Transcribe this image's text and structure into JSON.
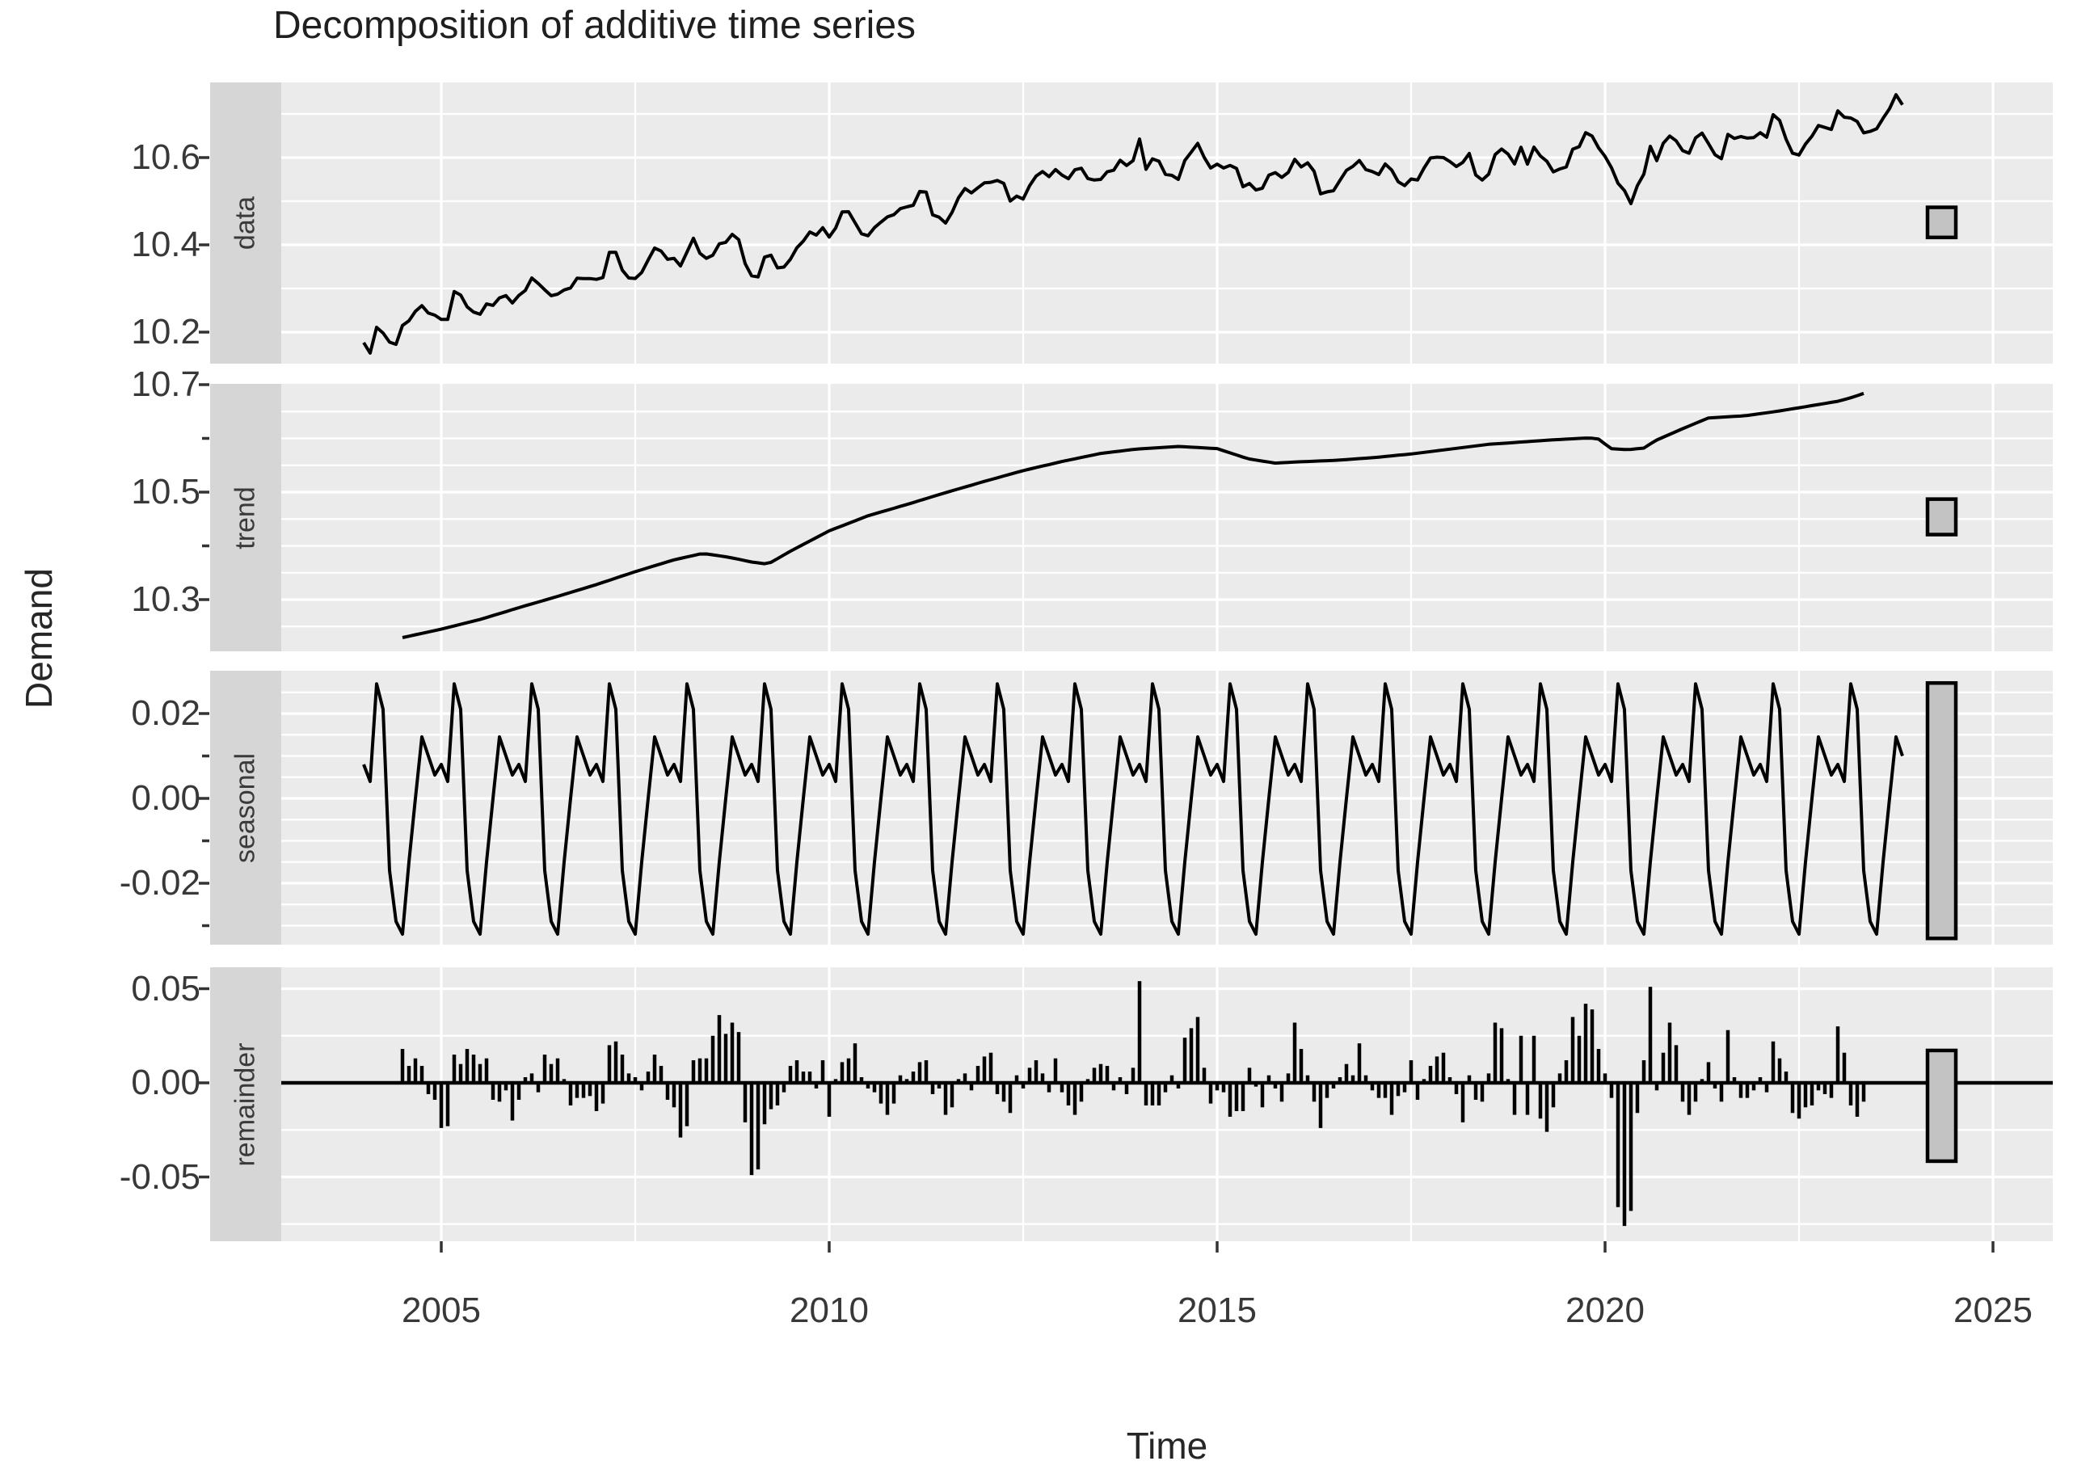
{
  "title": "Decomposition of additive time series",
  "axes": {
    "y_label": "Demand",
    "x_label": "Time",
    "x_ticks": [
      {
        "value": 2005,
        "label": "2005"
      },
      {
        "value": 2010,
        "label": "2010"
      },
      {
        "value": 2015,
        "label": "2015"
      },
      {
        "value": 2020,
        "label": "2020"
      },
      {
        "value": 2025,
        "label": "2025"
      }
    ],
    "x_minor_gridlines": [
      2007.5,
      2012.5,
      2017.5,
      2022.5
    ]
  },
  "style": {
    "panel_bg": "#ebebeb",
    "strip_bg": "#d6d6d6",
    "gridline": "#ffffff",
    "series": "#000000",
    "scale_bar_fill": "#c3c3c3",
    "scale_bar_border": "#000000",
    "axis_text": "#383838",
    "tick_mark": "#333333"
  },
  "chart_data": {
    "type": "line",
    "subtype": "additive-time-series-decomposition, 4 stacked facet panels",
    "x_frequency": "monthly",
    "x_start": "2004-01",
    "x_end": "2023-11",
    "trend_remainder_start": "2004-07",
    "trend_remainder_end": "2023-05",
    "xlim": [
      2002.94,
      2025.77
    ],
    "panels": [
      {
        "key": "data",
        "label": "data",
        "ylim": [
          10.128,
          10.772
        ],
        "tick_labels": [
          {
            "value": 10.6,
            "label": "10.6"
          },
          {
            "value": 10.4,
            "label": "10.4"
          },
          {
            "value": 10.2,
            "label": "10.2"
          }
        ],
        "minor_ticks": [],
        "minor_gridlines": [
          10.1,
          10.3,
          10.5,
          10.7
        ],
        "scale_bar": [
          10.417,
          10.486
        ]
      },
      {
        "key": "trend",
        "label": "trend",
        "ylim": [
          10.204,
          10.702
        ],
        "tick_labels": [
          {
            "value": 10.7,
            "label": "10.7"
          },
          {
            "value": 10.5,
            "label": "10.5"
          },
          {
            "value": 10.3,
            "label": "10.3"
          }
        ],
        "minor_ticks": [
          10.6,
          10.4
        ],
        "minor_gridlines": [
          10.65,
          10.6,
          10.55,
          10.45,
          10.4,
          10.35,
          10.25
        ],
        "scale_bar": [
          10.421,
          10.487
        ]
      },
      {
        "key": "seasonal",
        "label": "seasonal",
        "ylim": [
          -0.0345,
          0.0301
        ],
        "tick_labels": [
          {
            "value": 0.02,
            "label": "0.02"
          },
          {
            "value": 0.0,
            "label": "0.00"
          },
          {
            "value": -0.02,
            "label": "-0.02"
          }
        ],
        "minor_ticks": [
          0.01,
          -0.01,
          -0.03
        ],
        "minor_gridlines": [
          0.025,
          0.015,
          0.01,
          0.005,
          -0.005,
          -0.01,
          -0.015,
          -0.025,
          -0.03
        ],
        "scale_bar": [
          -0.033,
          0.0272
        ]
      },
      {
        "key": "remainder",
        "label": "remainder",
        "ylim": [
          -0.0841,
          0.0614
        ],
        "tick_labels": [
          {
            "value": 0.05,
            "label": "0.05"
          },
          {
            "value": 0.0,
            "label": "0.00"
          },
          {
            "value": -0.05,
            "label": "-0.05"
          }
        ],
        "minor_ticks": [],
        "minor_gridlines": [
          0.025,
          -0.025,
          -0.075
        ],
        "scale_bar": [
          -0.0416,
          0.0172
        ]
      }
    ],
    "seasonal_monthly": [
      0.008,
      0.004,
      0.027,
      0.021,
      -0.017,
      -0.029,
      -0.032,
      -0.015,
      0.0,
      0.0145,
      0.01,
      0.0055
    ],
    "trend_points": [
      [
        2004.458,
        10.228
      ],
      [
        2005.0,
        10.245
      ],
      [
        2005.5,
        10.263
      ],
      [
        2006.0,
        10.285
      ],
      [
        2006.5,
        10.306
      ],
      [
        2007.0,
        10.328
      ],
      [
        2007.5,
        10.352
      ],
      [
        2008.0,
        10.374
      ],
      [
        2008.37,
        10.386
      ],
      [
        2008.7,
        10.379
      ],
      [
        2009.0,
        10.37
      ],
      [
        2009.21,
        10.366
      ],
      [
        2009.5,
        10.39
      ],
      [
        2010.0,
        10.428
      ],
      [
        2010.5,
        10.456
      ],
      [
        2011.0,
        10.477
      ],
      [
        2011.5,
        10.499
      ],
      [
        2012.0,
        10.52
      ],
      [
        2012.5,
        10.54
      ],
      [
        2013.0,
        10.557
      ],
      [
        2013.5,
        10.572
      ],
      [
        2013.95,
        10.58
      ],
      [
        2014.5,
        10.585
      ],
      [
        2015.0,
        10.581
      ],
      [
        2015.4,
        10.562
      ],
      [
        2015.75,
        10.554
      ],
      [
        2016.0,
        10.556
      ],
      [
        2016.5,
        10.559
      ],
      [
        2017.0,
        10.564
      ],
      [
        2017.5,
        10.571
      ],
      [
        2018.0,
        10.58
      ],
      [
        2018.5,
        10.589
      ],
      [
        2019.0,
        10.594
      ],
      [
        2019.3,
        10.597
      ],
      [
        2019.8,
        10.601
      ],
      [
        2019.95,
        10.598
      ],
      [
        2020.05,
        10.581
      ],
      [
        2020.3,
        10.579
      ],
      [
        2020.5,
        10.582
      ],
      [
        2020.65,
        10.596
      ],
      [
        2021.0,
        10.618
      ],
      [
        2021.33,
        10.638
      ],
      [
        2021.8,
        10.642
      ],
      [
        2022.2,
        10.65
      ],
      [
        2022.5,
        10.657
      ],
      [
        2023.0,
        10.669
      ],
      [
        2023.2,
        10.677
      ],
      [
        2023.417,
        10.688
      ]
    ],
    "remainder_monthly": {
      "start": "2004-07",
      "values": [
        0.018,
        0.009,
        0.013,
        0.009,
        -0.006,
        -0.009,
        -0.024,
        -0.023,
        0.015,
        0.01,
        0.018,
        0.015,
        0.01,
        0.013,
        -0.009,
        -0.01,
        -0.004,
        -0.02,
        -0.009,
        0.003,
        0.005,
        -0.005,
        0.015,
        0.01,
        0.013,
        0.002,
        -0.012,
        -0.008,
        -0.008,
        -0.007,
        -0.015,
        -0.011,
        0.02,
        0.022,
        0.015,
        0.005,
        0.003,
        -0.004,
        0.006,
        0.015,
        0.009,
        -0.009,
        -0.013,
        -0.029,
        -0.023,
        0.012,
        0.013,
        0.013,
        0.025,
        0.036,
        0.026,
        0.032,
        0.027,
        -0.021,
        -0.049,
        -0.046,
        -0.022,
        -0.014,
        -0.012,
        -0.005,
        0.009,
        0.012,
        0.006,
        0.006,
        -0.003,
        0.012,
        -0.018,
        0.002,
        0.011,
        0.013,
        0.021,
        0.003,
        -0.003,
        -0.005,
        -0.011,
        -0.017,
        -0.011,
        0.004,
        0.002,
        0.006,
        0.011,
        0.012,
        -0.006,
        -0.003,
        -0.017,
        -0.013,
        0.002,
        0.005,
        -0.004,
        0.009,
        0.014,
        0.016,
        -0.006,
        -0.01,
        -0.016,
        0.004,
        -0.003,
        0.008,
        0.012,
        0.005,
        -0.005,
        0.013,
        -0.005,
        -0.012,
        -0.017,
        -0.01,
        0.002,
        0.008,
        0.01,
        0.009,
        -0.004,
        0.003,
        -0.006,
        0.008,
        0.054,
        -0.012,
        -0.012,
        -0.012,
        -0.005,
        0.004,
        -0.003,
        0.024,
        0.029,
        0.035,
        0.008,
        -0.011,
        -0.004,
        -0.005,
        -0.018,
        -0.015,
        -0.015,
        0.008,
        -0.002,
        -0.013,
        0.004,
        -0.003,
        -0.01,
        0.005,
        0.032,
        0.018,
        0.004,
        -0.01,
        -0.024,
        -0.008,
        -0.003,
        0.003,
        0.01,
        0.004,
        0.021,
        0.004,
        -0.004,
        -0.008,
        -0.008,
        -0.017,
        -0.007,
        -0.005,
        0.012,
        -0.009,
        0.002,
        0.009,
        0.014,
        0.016,
        0.003,
        -0.006,
        -0.021,
        0.004,
        -0.009,
        -0.01,
        0.005,
        0.032,
        0.029,
        0.002,
        -0.017,
        0.025,
        -0.017,
        0.025,
        -0.019,
        -0.026,
        -0.013,
        0.005,
        0.012,
        0.035,
        0.025,
        0.042,
        0.039,
        0.018,
        0.005,
        -0.008,
        -0.066,
        -0.076,
        -0.068,
        -0.016,
        0.012,
        0.051,
        -0.004,
        0.016,
        0.032,
        0.02,
        -0.01,
        -0.017,
        -0.01,
        0.002,
        0.011,
        -0.003,
        -0.01,
        0.028,
        0.003,
        -0.008,
        -0.008,
        -0.004,
        0.003,
        -0.005,
        0.022,
        0.013,
        0.006,
        -0.016,
        -0.019,
        -0.013,
        -0.012,
        -0.004,
        -0.006,
        -0.008,
        0.03,
        0.016,
        -0.012,
        -0.018,
        -0.01
      ]
    },
    "data_edge_start": [
      10.176,
      10.152,
      10.211,
      10.198,
      10.177,
      10.172
    ],
    "data_edge_end": [
      10.66,
      10.666,
      10.69,
      10.712,
      10.744,
      10.721
    ]
  }
}
